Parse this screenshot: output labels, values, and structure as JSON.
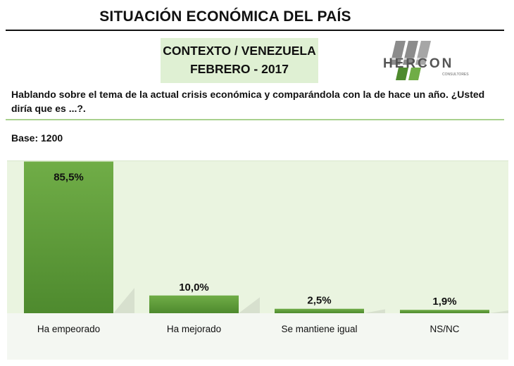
{
  "header": {
    "title": "SITUACIÓN ECONÓMICA DEL PAÍS",
    "context_line1": "CONTEXTO / VENEZUELA",
    "context_line2": "FEBRERO - 2017"
  },
  "logo": {
    "name": "HERCON",
    "tagline": "CONSULTORES"
  },
  "question": "Hablando sobre el tema de la actual crisis económica y comparándola con la de hace un año. ¿Usted diría que es ...?.",
  "base": "Base: 1200",
  "colors": {
    "bar_top": "#70ad47",
    "bar_bottom": "#4e8a2e",
    "panel": "#eaf4e0",
    "accent_rule": "#a9d18e"
  },
  "chart_data": {
    "type": "bar",
    "categories": [
      "Ha empeorado",
      "Ha mejorado",
      "Se mantiene igual",
      "NS/NC"
    ],
    "values": [
      85.5,
      10.0,
      2.5,
      1.9
    ],
    "value_labels": [
      "85,5%",
      "10,0%",
      "2,5%",
      "1,9%"
    ],
    "unit": "%",
    "ylim": [
      0,
      100
    ],
    "grid": false,
    "legend": "none"
  }
}
